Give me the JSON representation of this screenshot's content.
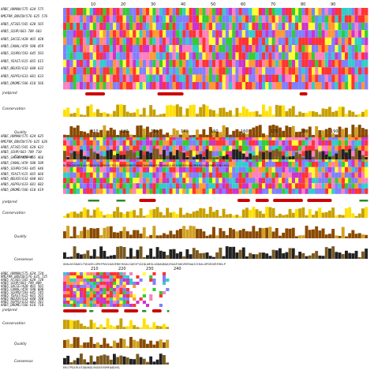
{
  "colors": {
    "hydrophobic": "#8080ff",
    "positive": "#ff3333",
    "negative": "#cc33cc",
    "polar": "#33cc33",
    "glycine": "#ff9933",
    "proline": "#ffff33",
    "aromatic": "#33cccc",
    "cysteine": "#ff80c0",
    "conservation_bar": "#c8a000",
    "quality_bar": "#8a4a00",
    "helix": "#cc0000",
    "strand": "#2a8a2a"
  },
  "blocks": [
    {
      "sequences": [
        {
          "label": "ARBC_HUMAN/575-624",
          "start": "575"
        },
        {
          "label": "RMCFRK_BOVIN/576-625",
          "start": "576"
        },
        {
          "label": "ARB5_AT3G5/565-620",
          "start": "565"
        },
        {
          "label": "ARB5_SCHP/683-709",
          "start": "683"
        },
        {
          "label": "ARB5_SACCE/420-465",
          "start": "420"
        },
        {
          "label": "ARB5_CANAL/459-508",
          "start": "459"
        },
        {
          "label": "ARB5_SCHPO/593-645",
          "start": "593"
        },
        {
          "label": "ARB5_YEAST/615-665",
          "start": "615"
        },
        {
          "label": "ARB5_NEUCR/632-680",
          "start": "632"
        },
        {
          "label": "ARB5_ASPFU/633-681",
          "start": "633"
        },
        {
          "label": "ARB5_DROME/566-618",
          "start": "566"
        }
      ],
      "ticks": [
        "10",
        "20",
        "30",
        "40",
        "50",
        "60",
        "70",
        "80",
        "90"
      ],
      "jpred_label": "jnetpred",
      "conservation_label": "Conservation",
      "quality_label": "Quality",
      "consensus_label": "Consensus"
    },
    {
      "sequences": [
        {
          "label": "ARBC_HUMAN/575-624",
          "start": "625"
        },
        {
          "label": "RMCFRK_BOVIN/576-625",
          "start": "626"
        },
        {
          "label": "ARB5_AT3G5/565-620",
          "start": "621"
        },
        {
          "label": "ARB5_SCHP/683-709",
          "start": "710"
        },
        {
          "label": "ARB5_SACCE/420-465",
          "start": "466"
        },
        {
          "label": "ARB5_CANAL/459-508",
          "start": "509"
        },
        {
          "label": "ARB5_SCHPO/593-645",
          "start": "646"
        },
        {
          "label": "ARB5_YEAST/615-665",
          "start": "666"
        },
        {
          "label": "ARB5_NEUCR/632-680",
          "start": "681"
        },
        {
          "label": "ARB5_ASPFU/633-681",
          "start": "682"
        },
        {
          "label": "ARB5_DROME/566-618",
          "start": "619"
        }
      ],
      "ticks": [
        "110",
        "120",
        "130",
        "140",
        "150",
        "160",
        "170",
        "180",
        "190"
      ],
      "jpred_label": "jnetpred",
      "conservation_label": "Conservation",
      "quality_label": "Quality",
      "consensus_label": "Consensus"
    },
    {
      "sequences": [
        {
          "label": "ARBC_HUMAN/575-624",
          "start": "724"
        },
        {
          "label": "RMCFRK_BOVIN/576-625",
          "start": "725"
        },
        {
          "label": "ARB5_AT3G5/565-620",
          "start": "720"
        },
        {
          "label": "ARB5_SCHP/683-709",
          "start": "809"
        },
        {
          "label": "ARB5_SACCE/420-465",
          "start": "565"
        },
        {
          "label": "ARB5_CANAL/459-508",
          "start": "608"
        },
        {
          "label": "ARB5_SCHPO/593-645",
          "start": "745"
        },
        {
          "label": "ARB5_YEAST/615-665",
          "start": "765"
        },
        {
          "label": "ARB5_NEUCR/632-680",
          "start": "780"
        },
        {
          "label": "ARB5_ASPFU/633-681",
          "start": "781"
        },
        {
          "label": "ARB5_DROME/566-618",
          "start": "718"
        }
      ],
      "ticks": [
        "210",
        "220",
        "230",
        "240"
      ],
      "jpred_label": "jnetpred",
      "conservation_label": "Conservation",
      "quality_label": "Quality",
      "consensus_label": "Consensus"
    }
  ],
  "consensus_seq": [
    "NCFSLQRIDEIALKFEGAIQLDPHVAYIVLLCRETVHNEEEKALCRAWPHAPEERVWAKGLHGYIQEESKAALMMEKGAKLEHNPYSVLLKEQ",
    "GHALKSSKAELTVKAVELGPKFPAVLKAVERKYKSALIAEGFYAIQLWESLASDAQKQAIEAAFVAKVEERAAIIIKALGPGRIGRFHDLP",
    "EKLTPDLPLEIGDAKGLRSGSEVSMFAADVSL"
  ]
}
